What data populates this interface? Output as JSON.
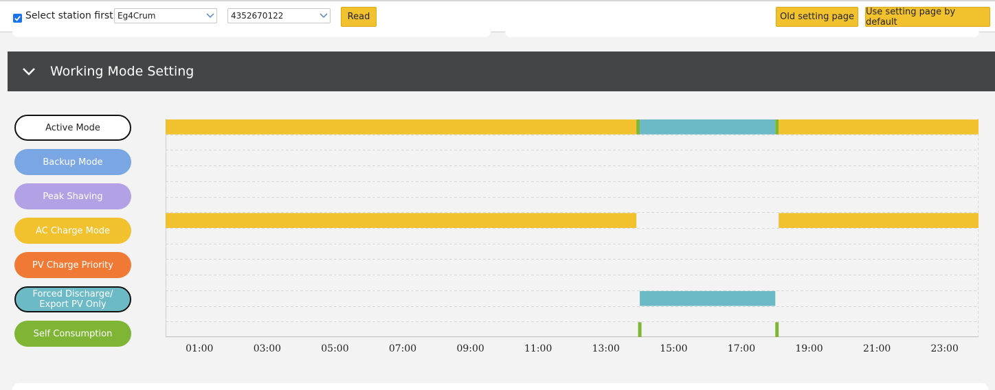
{
  "toolbar": {
    "select_station_label": "Select station first",
    "select_station_checked": true,
    "station_select_value": "Eg4Crum",
    "serial_select_value": "4352670122",
    "read_label": "Read",
    "old_setting_label": "Old setting page",
    "default_setting_label": "Use setting page by default"
  },
  "section": {
    "title": "Working Mode Setting"
  },
  "modes": [
    {
      "label": "Active Mode",
      "color": "#ffffff",
      "text_color": "#222222",
      "selected": true
    },
    {
      "label": "Backup Mode",
      "color": "#7aa7e3",
      "text_color": "#ffffff",
      "selected": false
    },
    {
      "label": "Peak Shaving",
      "color": "#b3a1e6",
      "text_color": "#ffffff",
      "selected": false
    },
    {
      "label": "AC Charge Mode",
      "color": "#f2c12e",
      "text_color": "#ffffff",
      "selected": false
    },
    {
      "label": "PV Charge Priority",
      "color": "#f07a35",
      "text_color": "#ffffff",
      "selected": false
    },
    {
      "label": "Forced Discharge/ Export PV Only",
      "color": "#6bbac6",
      "text_color": "#ffffff",
      "selected": true
    },
    {
      "label": "Self Consumption",
      "color": "#7eb534",
      "text_color": "#ffffff",
      "selected": false
    }
  ],
  "chart_data": {
    "type": "timeline",
    "x_range_hours": [
      0,
      24
    ],
    "x_tick_labels": [
      "01:00",
      "03:00",
      "05:00",
      "07:00",
      "09:00",
      "11:00",
      "13:00",
      "15:00",
      "17:00",
      "19:00",
      "21:00",
      "23:00"
    ],
    "rows": [
      "Active Mode",
      "",
      "",
      "",
      "",
      "",
      "AC Charge Mode",
      "",
      "",
      "",
      "",
      "Forced Discharge/ Export PV Only",
      "",
      "Self Consumption"
    ],
    "bars": [
      {
        "row": 0,
        "start": 0,
        "end": 13.9,
        "color": "#f2c12e"
      },
      {
        "row": 0,
        "start": 13.9,
        "end": 14.0,
        "color": "#7eb534"
      },
      {
        "row": 0,
        "start": 14.0,
        "end": 18.0,
        "color": "#6bbac6"
      },
      {
        "row": 0,
        "start": 18.0,
        "end": 18.1,
        "color": "#7eb534"
      },
      {
        "row": 0,
        "start": 18.1,
        "end": 24,
        "color": "#f2c12e"
      },
      {
        "row": 6,
        "start": 0,
        "end": 13.9,
        "color": "#f2c12e"
      },
      {
        "row": 6,
        "start": 18.1,
        "end": 24,
        "color": "#f2c12e"
      },
      {
        "row": 11,
        "start": 14.0,
        "end": 18.0,
        "color": "#6bbac6"
      },
      {
        "row": 13,
        "start": 13.95,
        "end": 14.05,
        "color": "#7eb534"
      },
      {
        "row": 13,
        "start": 18.0,
        "end": 18.1,
        "color": "#7eb534"
      }
    ]
  }
}
